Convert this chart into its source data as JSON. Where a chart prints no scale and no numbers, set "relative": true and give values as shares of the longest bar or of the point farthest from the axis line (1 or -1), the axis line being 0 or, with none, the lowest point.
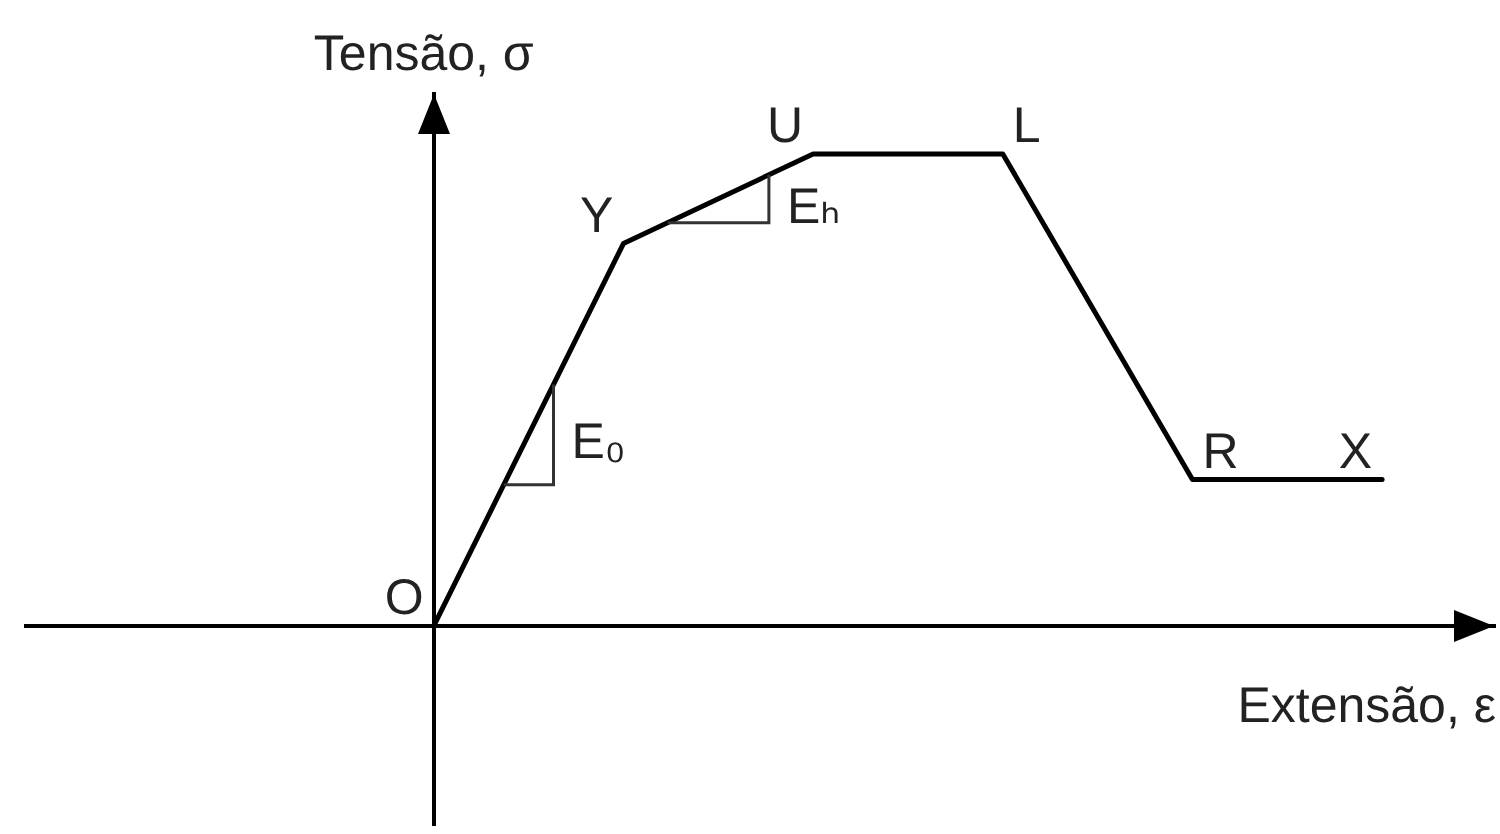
{
  "chart_data": {
    "type": "line",
    "relative": true,
    "xlabel": "Extensão, ε",
    "ylabel": "Tensão, σ",
    "categories": [
      null,
      null,
      null,
      null,
      null,
      null
    ],
    "values": [
      0,
      0.81,
      1,
      1,
      0.31,
      0.31
    ],
    "color": "#000000",
    "marker": "none",
    "annotations": [
      "O",
      "Y",
      "U",
      "L",
      "R",
      "X",
      "E₀",
      "Eₕ"
    ]
  }
}
